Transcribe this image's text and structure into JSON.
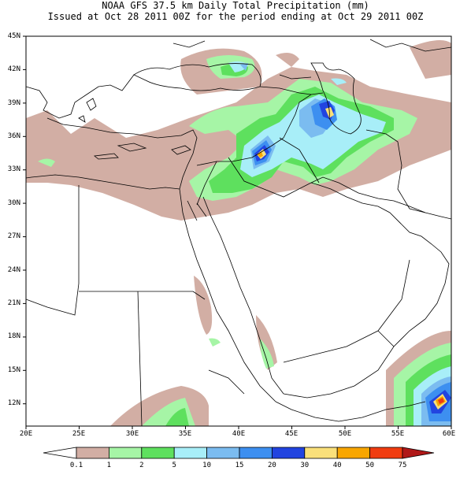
{
  "title_line1": "NOAA GFS 37.5 km Daily Total Precipitation (mm)",
  "title_line2": "Issued at Oct 28 2011 00Z for the period ending at Oct 29 2011 00Z",
  "lat_labels": [
    "45N",
    "42N",
    "39N",
    "36N",
    "33N",
    "30N",
    "27N",
    "24N",
    "21N",
    "18N",
    "15N",
    "12N"
  ],
  "lon_labels": [
    "20E",
    "25E",
    "30E",
    "35E",
    "40E",
    "45E",
    "50E",
    "55E",
    "60E"
  ],
  "colorbar": {
    "thresholds": [
      "0.1",
      "1",
      "2",
      "5",
      "10",
      "15",
      "20",
      "30",
      "40",
      "50",
      "75"
    ],
    "colors": [
      "#ffffff",
      "#d2aea4",
      "#a6f5a6",
      "#5ee05e",
      "#a8eef8",
      "#7bbcf0",
      "#3d8ff0",
      "#2244e0",
      "#fae07a",
      "#f8a600",
      "#f03c10",
      "#b01818"
    ]
  },
  "map": {
    "land_color": "#ffffff",
    "border_color": "#000000",
    "extent": {
      "lon": [
        20,
        60
      ],
      "lat": [
        10,
        45
      ]
    }
  }
}
